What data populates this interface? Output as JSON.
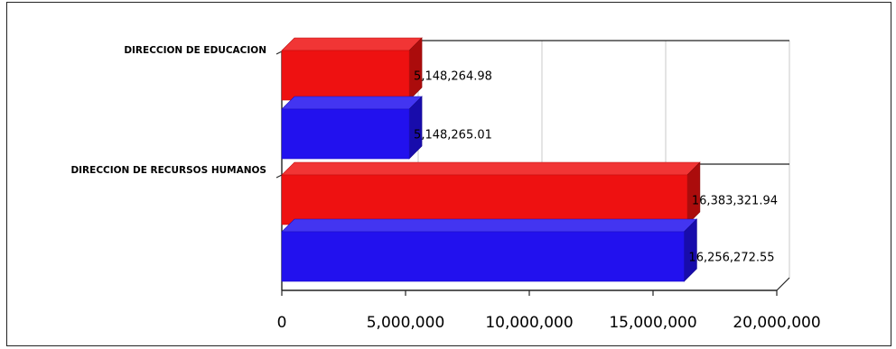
{
  "chart_data": {
    "type": "bar",
    "orientation": "horizontal",
    "style": "3d",
    "categories": [
      "DIRECCION DE EDUCACION",
      "DIRECCION DE RECURSOS HUMANOS"
    ],
    "series": [
      {
        "values": [
          5148264.98,
          16383321.94
        ],
        "color": "#ee1111"
      },
      {
        "values": [
          5148265.01,
          16256272.55
        ],
        "color": "#2211ee"
      }
    ],
    "value_labels": [
      [
        "5,148,264.98",
        "5,148,265.01"
      ],
      [
        "16,383,321.94",
        "16,256,272.55"
      ]
    ],
    "x_ticks": [
      "0",
      "5,000,000",
      "10,000,000",
      "15,000,000",
      "20,000,000"
    ],
    "xlim": [
      0,
      20000000
    ],
    "grid": true,
    "legend": "none",
    "title": "",
    "xlabel": "",
    "ylabel": ""
  }
}
